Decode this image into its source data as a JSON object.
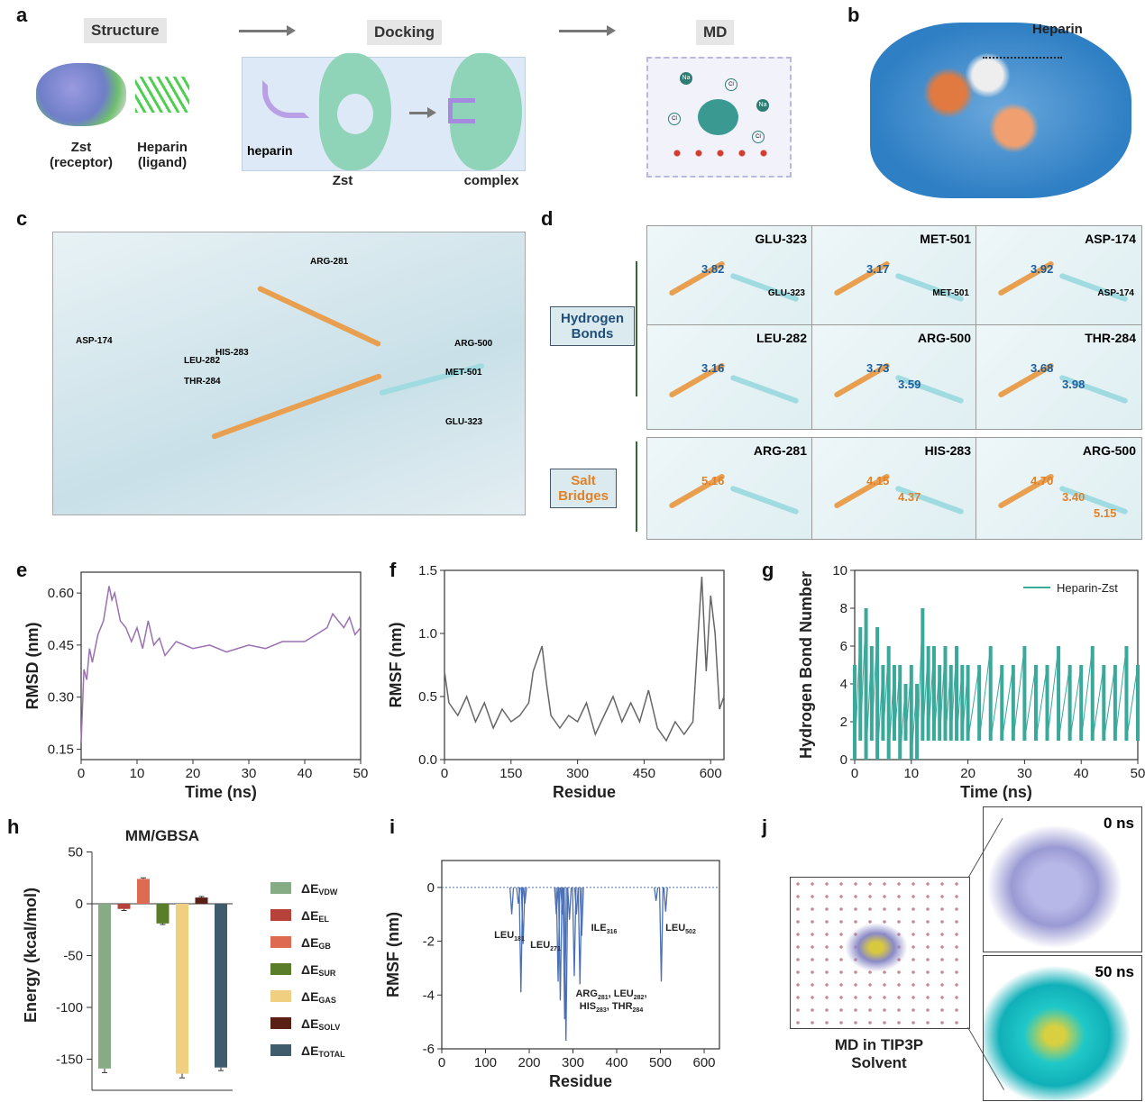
{
  "panels": {
    "a": "a",
    "b": "b",
    "c": "c",
    "d": "d",
    "e": "e",
    "f": "f",
    "g": "g",
    "h": "h",
    "i": "i",
    "j": "j"
  },
  "a": {
    "structure": "Structure",
    "docking": "Docking",
    "md": "MD",
    "zst": "Zst",
    "receptor": "(receptor)",
    "heparin": "Heparin",
    "ligand": "(ligand)",
    "heparin_lower": "heparin",
    "zst_label": "Zst",
    "complex": "complex",
    "ions": [
      "Na",
      "Cl",
      "Na",
      "Cl",
      "Na",
      "Cl"
    ]
  },
  "b": {
    "label": "Heparin"
  },
  "c": {
    "residues": [
      "ASP-174",
      "LEU-282",
      "THR-284",
      "HIS-283",
      "ARG-281",
      "ARG-500",
      "MET-501",
      "GLU-323"
    ]
  },
  "d": {
    "hbond_label": "Hydrogen Bonds",
    "salt_label": "Salt Bridges",
    "cells": [
      {
        "res": "GLU-323",
        "sub": "GLU-323",
        "dists": [
          "3.82"
        ]
      },
      {
        "res": "MET-501",
        "sub": "MET-501",
        "dists": [
          "3.17"
        ]
      },
      {
        "res": "ASP-174",
        "sub": "ASP-174",
        "dists": [
          "3.92"
        ]
      },
      {
        "res": "LEU-282",
        "sub": "",
        "dists": [
          "3.16"
        ]
      },
      {
        "res": "ARG-500",
        "sub": "",
        "dists": [
          "3.73",
          "3.59"
        ]
      },
      {
        "res": "THR-284",
        "sub": "",
        "dists": [
          "3.68",
          "3.98"
        ]
      },
      {
        "res": "ARG-281",
        "sub": "",
        "dists": [
          "5.16"
        ]
      },
      {
        "res": "HIS-283",
        "sub": "",
        "dists": [
          "4.15",
          "4.37"
        ]
      },
      {
        "res": "ARG-500",
        "sub": "",
        "dists": [
          "4.70",
          "3.40",
          "5.15"
        ]
      }
    ]
  },
  "j": {
    "caption1": "MD in TIP3P",
    "caption2": "Solvent",
    "t0": "0 ns",
    "t50": "50 ns"
  },
  "chart_data": [
    {
      "id": "e",
      "type": "line",
      "xlabel": "Time (ns)",
      "ylabel": "RMSD (nm)",
      "xlim": [
        0,
        50
      ],
      "ylim": [
        0.12,
        0.66
      ],
      "xticks": [
        0,
        10,
        20,
        30,
        40,
        50
      ],
      "yticks": [
        0.15,
        0.3,
        0.45,
        0.6
      ],
      "ytick_labels": [
        "0.15",
        "0.30",
        "0.45",
        "0.60"
      ],
      "color": "#9a70b0",
      "x": [
        0,
        0.5,
        1,
        1.5,
        2,
        3,
        4,
        5,
        5.5,
        6,
        7,
        8,
        9,
        10,
        11,
        12,
        13,
        14,
        15,
        17,
        20,
        23,
        26,
        30,
        33,
        36,
        40,
        42,
        44,
        45,
        46,
        47,
        48,
        49,
        50
      ],
      "y": [
        0.17,
        0.38,
        0.35,
        0.44,
        0.4,
        0.48,
        0.52,
        0.62,
        0.58,
        0.6,
        0.52,
        0.5,
        0.46,
        0.5,
        0.44,
        0.52,
        0.45,
        0.47,
        0.42,
        0.46,
        0.44,
        0.45,
        0.43,
        0.45,
        0.44,
        0.46,
        0.46,
        0.48,
        0.5,
        0.54,
        0.52,
        0.5,
        0.53,
        0.48,
        0.5
      ]
    },
    {
      "id": "f",
      "type": "line",
      "xlabel": "Residue",
      "ylabel": "RMSF (nm)",
      "xlim": [
        0,
        630
      ],
      "ylim": [
        0,
        1.5
      ],
      "xticks": [
        0,
        150,
        300,
        450,
        600
      ],
      "yticks": [
        0,
        0.5,
        1.0,
        1.5
      ],
      "ytick_labels": [
        "0.0",
        "0.5",
        "1.0",
        "1.5"
      ],
      "color": "#666666",
      "x": [
        0,
        10,
        30,
        50,
        70,
        90,
        110,
        130,
        150,
        170,
        190,
        200,
        210,
        220,
        230,
        240,
        260,
        280,
        300,
        320,
        340,
        360,
        380,
        400,
        420,
        440,
        460,
        480,
        500,
        520,
        540,
        560,
        570,
        580,
        590,
        600,
        610,
        620,
        630
      ],
      "y": [
        0.7,
        0.45,
        0.35,
        0.5,
        0.3,
        0.45,
        0.25,
        0.4,
        0.3,
        0.35,
        0.45,
        0.7,
        0.8,
        0.9,
        0.6,
        0.35,
        0.25,
        0.35,
        0.3,
        0.45,
        0.2,
        0.35,
        0.5,
        0.3,
        0.45,
        0.3,
        0.55,
        0.25,
        0.15,
        0.3,
        0.2,
        0.3,
        0.9,
        1.45,
        0.7,
        1.3,
        1.0,
        0.4,
        0.5
      ]
    },
    {
      "id": "g",
      "type": "line",
      "xlabel": "Time (ns)",
      "ylabel": "Hydrogen Bond Number",
      "xlim": [
        0,
        50
      ],
      "ylim": [
        0,
        10
      ],
      "xticks": [
        0,
        10,
        20,
        30,
        40,
        50
      ],
      "yticks": [
        0,
        2,
        4,
        6,
        8,
        10
      ],
      "legend": "Heparin-Zst",
      "legend_position": "top-right",
      "color": "#3aa89a",
      "x": [
        0,
        1,
        2,
        3,
        4,
        5,
        6,
        7,
        8,
        9,
        10,
        11,
        12,
        13,
        14,
        15,
        16,
        17,
        18,
        19,
        20,
        22,
        24,
        26,
        28,
        30,
        32,
        34,
        36,
        38,
        40,
        42,
        44,
        46,
        48,
        50
      ],
      "y_low": [
        0,
        1,
        0,
        1,
        0,
        1,
        0,
        1,
        0,
        1,
        0,
        0,
        1,
        1,
        1,
        1,
        1,
        1,
        1,
        1,
        1,
        1,
        1,
        1,
        1,
        1,
        1,
        1,
        1,
        1,
        1,
        1,
        1,
        1,
        1,
        1
      ],
      "y_high": [
        5,
        7,
        8,
        6,
        7,
        5,
        6,
        5,
        5,
        4,
        5,
        4,
        8,
        6,
        6,
        5,
        6,
        5,
        6,
        5,
        5,
        5,
        6,
        5,
        5,
        6,
        5,
        5,
        6,
        5,
        5,
        6,
        5,
        5,
        6,
        5
      ]
    },
    {
      "id": "h",
      "type": "bar",
      "title": "MM/GBSA",
      "ylabel": "Energy (kcal/mol)",
      "ylim": [
        -175,
        50
      ],
      "yticks": [
        50,
        0,
        -50,
        -100,
        -150
      ],
      "categories": [
        "ΔE_VDW",
        "ΔE_EL",
        "ΔE_GB",
        "ΔE_SUR",
        "ΔE_GAS",
        "ΔE_SOLV",
        "ΔE_TOTAL"
      ],
      "legend": [
        {
          "d": "ΔE",
          "s": "VDW"
        },
        {
          "d": "ΔE",
          "s": "EL"
        },
        {
          "d": "ΔE",
          "s": "GB"
        },
        {
          "d": "ΔE",
          "s": "SUR"
        },
        {
          "d": "ΔE",
          "s": "GAS"
        },
        {
          "d": "ΔE",
          "s": "SOLV"
        },
        {
          "d": "ΔE",
          "s": "TOTAL"
        }
      ],
      "values": [
        -159,
        -5,
        24,
        -19,
        -164,
        6,
        -158
      ],
      "errors": [
        4,
        1.5,
        1,
        1,
        4,
        1,
        3
      ],
      "colors": [
        "#86ac86",
        "#b6423a",
        "#de6a52",
        "#5a7d2a",
        "#f0cf80",
        "#5a2016",
        "#3f5c6c"
      ]
    },
    {
      "id": "i",
      "type": "line",
      "xlabel": "Residue",
      "ylabel": "RMSF (nm)",
      "xlim": [
        0,
        635
      ],
      "ylim": [
        -6,
        1
      ],
      "xticks": [
        0,
        100,
        200,
        300,
        400,
        500,
        600
      ],
      "yticks": [
        0,
        -2,
        -4,
        -6
      ],
      "color": "#4a6fb5",
      "dips": [
        [
          160,
          -1.0
        ],
        [
          175,
          -0.6
        ],
        [
          181,
          -3.9
        ],
        [
          186,
          -2.1
        ],
        [
          190,
          -0.6
        ],
        [
          262,
          -1.0
        ],
        [
          266,
          -3.5
        ],
        [
          271,
          -4.2
        ],
        [
          276,
          -1.0
        ],
        [
          281,
          -4.9
        ],
        [
          284,
          -5.7
        ],
        [
          292,
          -1.2
        ],
        [
          303,
          -3.3
        ],
        [
          308,
          -1.0
        ],
        [
          316,
          -3.6
        ],
        [
          320,
          -1.8
        ],
        [
          490,
          -0.5
        ],
        [
          502,
          -3.5
        ],
        [
          512,
          -0.9
        ]
      ],
      "annotations": [
        {
          "main": "LEU",
          "sub": "181"
        },
        {
          "main": "LEU",
          "sub": "271"
        },
        {
          "main": "ILE",
          "sub": "316"
        },
        {
          "main": "LEU",
          "sub": "502"
        }
      ],
      "annotation_multi": [
        "ARG",
        "281",
        ", LEU",
        "282",
        ",",
        "HIS",
        "283",
        ", THR",
        "284"
      ]
    }
  ]
}
